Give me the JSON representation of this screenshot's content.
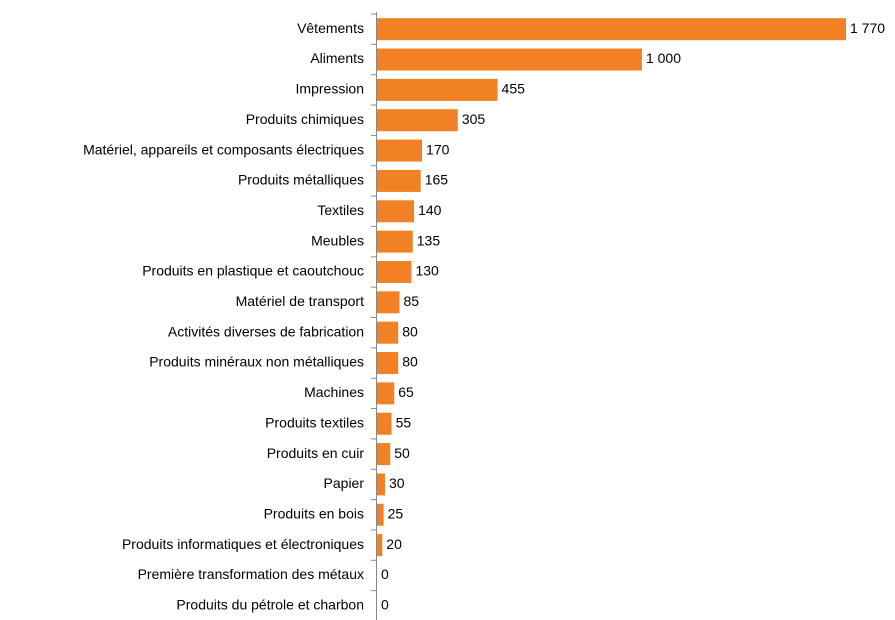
{
  "chart_data": {
    "type": "bar",
    "orientation": "horizontal",
    "color": "#f28125",
    "categories": [
      "Vêtements",
      "Aliments",
      "Impression",
      "Produits chimiques",
      "Matériel, appareils et composants électriques",
      "Produits métalliques",
      "Textiles",
      "Meubles",
      "Produits en plastique et caoutchouc",
      "Matériel de transport",
      "Activités diverses de fabrication",
      "Produits minéraux non métalliques",
      "Machines",
      "Produits textiles",
      "Produits en cuir",
      "Papier",
      "Produits en bois",
      "Produits informatiques et électroniques",
      "Première transformation des métaux",
      "Produits du pétrole et charbon"
    ],
    "values": [
      1770,
      1000,
      455,
      305,
      170,
      165,
      140,
      135,
      130,
      85,
      80,
      80,
      65,
      55,
      50,
      30,
      25,
      20,
      0,
      0
    ],
    "value_labels": [
      "1 770",
      "1 000",
      "455",
      "305",
      "170",
      "165",
      "140",
      "135",
      "130",
      "85",
      "80",
      "80",
      "65",
      "55",
      "50",
      "30",
      "25",
      "20",
      "0",
      "0"
    ]
  }
}
